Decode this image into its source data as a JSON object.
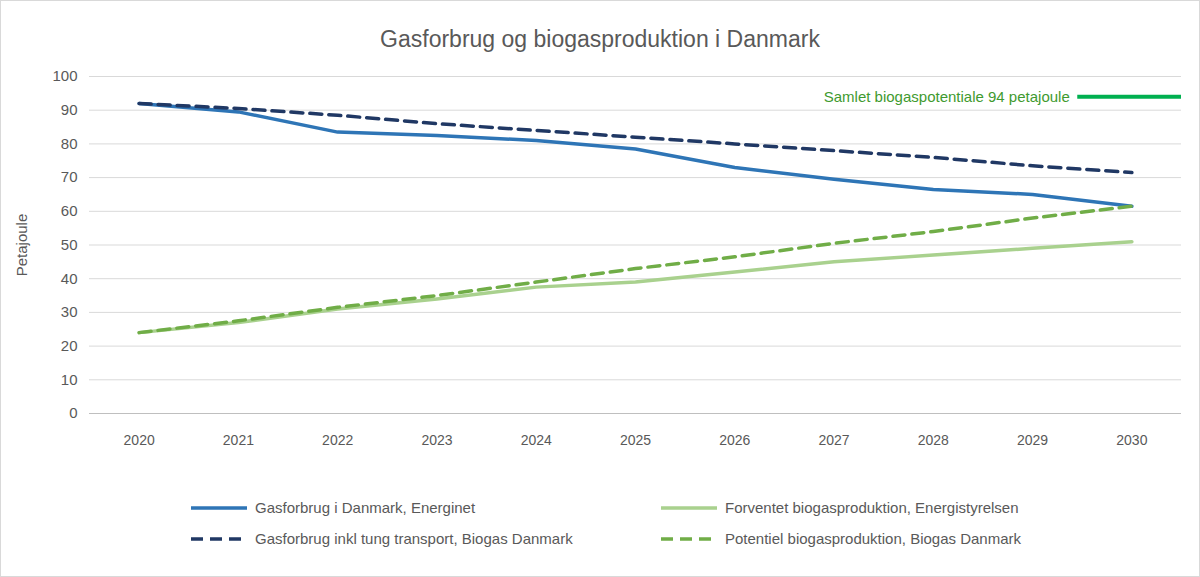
{
  "chart_data": {
    "type": "line",
    "title": "Gasforbrug og biogasproduktion i Danmark",
    "ylabel": "Petajoule",
    "x": [
      2020,
      2021,
      2022,
      2023,
      2024,
      2025,
      2026,
      2027,
      2028,
      2029,
      2030
    ],
    "xlim": [
      2019.5,
      2030.5
    ],
    "xticks": [
      2020,
      2021,
      2022,
      2023,
      2024,
      2025,
      2026,
      2027,
      2028,
      2029,
      2030
    ],
    "ylim": [
      0,
      100
    ],
    "yticks": [
      0,
      10,
      20,
      30,
      40,
      50,
      60,
      70,
      80,
      90,
      100
    ],
    "grid": true,
    "legend": "bottom",
    "series": [
      {
        "name": "Gasforbrug i Danmark, Energinet",
        "color": "#2e75b6",
        "line_style": "solid",
        "values": [
          92,
          89.5,
          83.5,
          82.5,
          81,
          78.5,
          73,
          69.5,
          66.5,
          65,
          61.5
        ]
      },
      {
        "name": "Forventet biogasproduktion, Energistyrelsen",
        "color": "#a9d18e",
        "line_style": "solid",
        "values": [
          24,
          27,
          31,
          34,
          37.5,
          39,
          42,
          45,
          47,
          49,
          51
        ]
      },
      {
        "name": "Gasforbrug inkl tung transport, Biogas Danmark",
        "color": "#203864",
        "line_style": "dashed",
        "values": [
          92,
          90.5,
          88.5,
          86,
          84,
          82,
          80,
          78,
          76,
          73.5,
          71.5
        ]
      },
      {
        "name": "Potentiel biogasproduktion, Biogas Danmark",
        "color": "#70ad47",
        "line_style": "dashed",
        "values": [
          24,
          27.5,
          31.5,
          35,
          39,
          43,
          46.5,
          50.5,
          54,
          58,
          61.5
        ]
      }
    ],
    "annotations": [
      {
        "text": "Samlet biogaspotentiale 94 petajoule",
        "y": 94
      }
    ]
  }
}
